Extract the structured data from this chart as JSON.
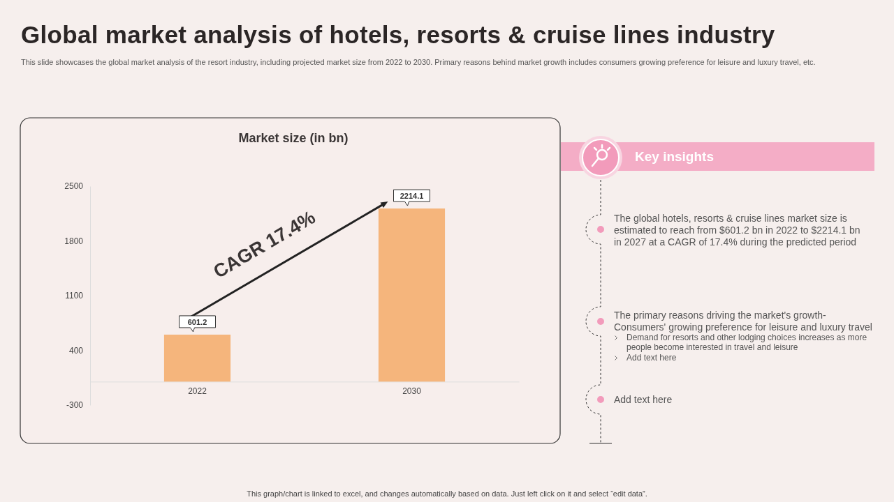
{
  "chart_data": [
    {
      "type": "other",
      "title": "Global market analysis of hotels, resorts & cruise lines industry",
      "subtitle": "This slide showcases the global market analysis of the resort industry, including projected market size from 2022 to 2030. Primary reasons behind market growth includes consumers growing preference for leisure and luxury travel, etc.",
      "annotations": [
        "This graph/chart is linked to excel, and changes automatically based on data. Just left click on it and select “edit data”."
      ]
    },
    {
      "type": "bar",
      "title": "Market size (in bn)",
      "categories": [
        "2022",
        "2030"
      ],
      "values": [
        601.2,
        2214.1
      ],
      "color": "#f5b57c",
      "ylim": [
        -300,
        2500
      ],
      "yticks": [
        -300,
        400,
        1100,
        1800,
        2500
      ],
      "grid": false,
      "data_labels": true,
      "annotations": [
        "CAGR 17.4%"
      ]
    },
    {
      "type": "other",
      "title": "Key insights",
      "annotations": [
        "The global hotels, resorts & cruise lines market size is estimated to reach from $601.2 bn in 2022 to $2214.1 bn in 2027 at a CAGR of 17.4% during the predicted period",
        "The primary reasons driving the market's growth- Consumers' growing preference for leisure and luxury travel",
        "Demand for resorts and other lodging choices increases as more people become interested in travel and leisure",
        "Add text here",
        "Add text here"
      ]
    }
  ]
}
